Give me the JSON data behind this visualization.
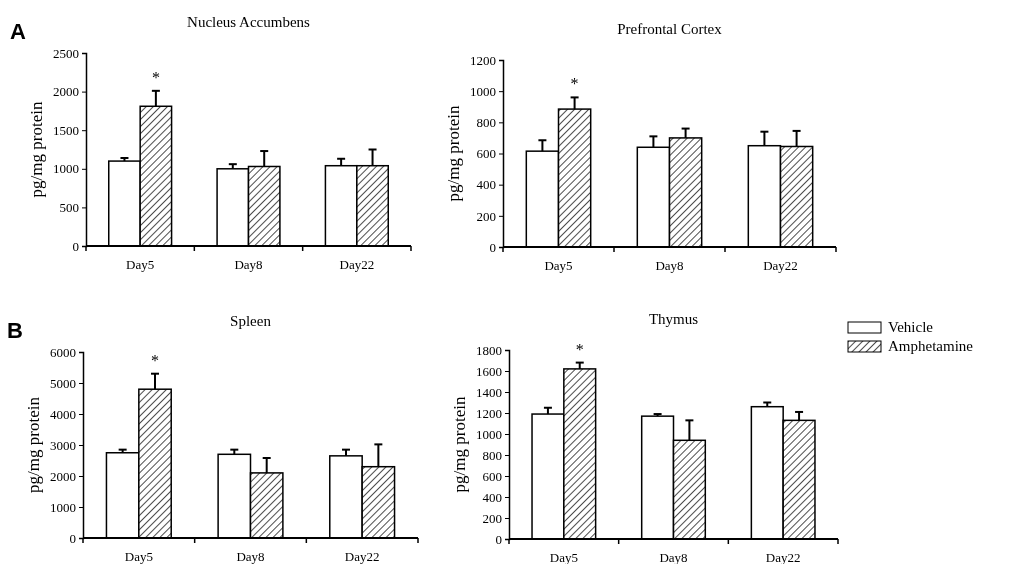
{
  "chart_data": [
    {
      "type": "bar",
      "title": "Nucleus Accumbens",
      "ylabel": "pg/mg protein",
      "categories": [
        "Day5",
        "Day8",
        "Day22"
      ],
      "ylim": [
        0,
        2500
      ],
      "yticks": [
        0,
        500,
        1000,
        1500,
        2000,
        2500
      ],
      "legend": false,
      "annotations": [
        "A",
        {
          "text": "*",
          "x": "Day5",
          "y": 1810
        }
      ],
      "series": [
        {
          "color": "#ffffff",
          "values": [
            1100,
            1000,
            1040
          ],
          "errors": [
            40,
            60,
            90
          ]
        },
        {
          "color": "#000000",
          "values": [
            1810,
            1030,
            1040
          ],
          "errors": [
            200,
            200,
            210
          ]
        }
      ]
    },
    {
      "type": "bar",
      "title": "Prefrontal Cortex",
      "ylabel": "pg/mg protein",
      "categories": [
        "Day5",
        "Day8",
        "Day22"
      ],
      "ylim": [
        0,
        1200
      ],
      "yticks": [
        0,
        200,
        400,
        600,
        800,
        1000,
        1200
      ],
      "legend": false,
      "annotations": [
        {
          "text": "*",
          "x": "Day5",
          "y": 885
        }
      ],
      "series": [
        {
          "color": "#ffffff",
          "values": [
            615,
            640,
            650
          ],
          "errors": [
            70,
            70,
            90
          ]
        },
        {
          "color": "#000000",
          "values": [
            885,
            700,
            645
          ],
          "errors": [
            75,
            60,
            100
          ]
        }
      ]
    },
    {
      "type": "bar",
      "title": "Spleen",
      "ylabel": "pg/mg protein",
      "categories": [
        "Day5",
        "Day8",
        "Day22"
      ],
      "ylim": [
        0,
        6000
      ],
      "yticks": [
        0,
        1000,
        2000,
        3000,
        4000,
        5000,
        6000
      ],
      "legend": false,
      "annotations": [
        "B",
        {
          "text": "*",
          "x": "Day5",
          "y": 4800
        }
      ],
      "series": [
        {
          "color": "#ffffff",
          "values": [
            2750,
            2700,
            2650
          ],
          "errors": [
            100,
            150,
            200
          ]
        },
        {
          "color": "#000000",
          "values": [
            4800,
            2100,
            2300
          ],
          "errors": [
            500,
            480,
            720
          ]
        }
      ]
    },
    {
      "type": "bar",
      "title": "Thymus",
      "ylabel": "pg/mg protein",
      "categories": [
        "Day5",
        "Day8",
        "Day22"
      ],
      "ylim": [
        0,
        1800
      ],
      "yticks": [
        0,
        200,
        400,
        600,
        800,
        1000,
        1200,
        1400,
        1600,
        1800
      ],
      "legend": "right",
      "annotations": [
        {
          "text": "*",
          "x": "Day5",
          "y": 1620
        }
      ],
      "series": [
        {
          "name": "Vehicle",
          "color": "#ffffff",
          "values": [
            1190,
            1170,
            1260
          ],
          "errors": [
            60,
            20,
            40
          ]
        },
        {
          "name": "Amphetamine",
          "color": "#000000",
          "values": [
            1620,
            940,
            1130
          ],
          "errors": [
            60,
            190,
            80
          ]
        }
      ]
    }
  ]
}
